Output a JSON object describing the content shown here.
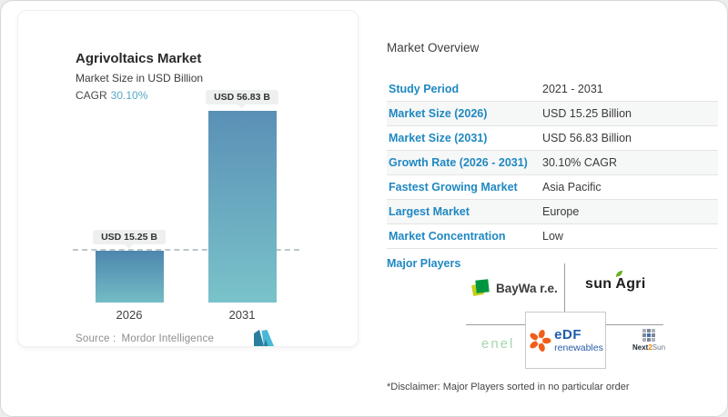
{
  "chart_card": {
    "title": "Agrivoltaics Market",
    "subtitle": "Market Size in USD Billion",
    "cagr_label": "CAGR",
    "cagr_value": "30.10%",
    "source_label": "Source :",
    "source_value": "Mordor Intelligence"
  },
  "chart_data": {
    "type": "bar",
    "title": "Agrivoltaics Market",
    "ylabel": "Market Size in USD Billion",
    "xlabel": "",
    "categories": [
      "2026",
      "2031"
    ],
    "values": [
      15.25,
      56.83
    ],
    "bar_labels": [
      "USD 15.25 B",
      "USD 56.83 B"
    ],
    "unit": "USD Billion",
    "ylim": [
      0,
      60
    ],
    "grid": false,
    "legend": false,
    "annotations": [
      "CAGR 30.10%",
      "dashed reference line at 2026 value"
    ],
    "dashed_reference_value": 15.25,
    "bar_gradients": [
      [
        "#4d86ae",
        "#74bcc5"
      ],
      [
        "#5a90b6",
        "#7ac3ca"
      ]
    ]
  },
  "overview": {
    "heading": "Market Overview",
    "rows": [
      {
        "label": "Study Period",
        "value": "2021 - 2031",
        "shaded": false
      },
      {
        "label": "Market Size (2026)",
        "value": "USD 15.25 Billion",
        "shaded": true
      },
      {
        "label": "Market Size (2031)",
        "value": "USD 56.83 Billion",
        "shaded": false
      },
      {
        "label": "Growth Rate (2026 - 2031)",
        "value": "30.10% CAGR",
        "shaded": true
      },
      {
        "label": "Fastest Growing Market",
        "value": "Asia Pacific",
        "shaded": false
      },
      {
        "label": "Largest Market",
        "value": "Europe",
        "shaded": true
      },
      {
        "label": "Market Concentration",
        "value": "Low",
        "shaded": false
      }
    ],
    "major_players_label": "Major Players",
    "disclaimer": "*Disclaimer: Major Players sorted in no particular order"
  },
  "players": {
    "baywa": {
      "label": "BayWa r.e."
    },
    "sunagri": {
      "part1": "sun",
      "part2": "Agri"
    },
    "enel": {
      "label": "enel"
    },
    "edf": {
      "brand": "eDF",
      "sub": "renewables"
    },
    "next2sun": {
      "part1": "Next",
      "part2": "2",
      "part3": "Sun"
    }
  },
  "icons": {
    "mi_logo": "mordor-intelligence-logo",
    "baywa": "baywa-green-squares-icon",
    "sunagri_leaf": "green-leaf-icon",
    "edf": "edf-orange-flower-icon",
    "next2sun": "pixel-grid-sun-icon"
  },
  "colors": {
    "accent_blue": "#1f88c1",
    "cagr_teal": "#56a8c9",
    "value_text": "#3a3a3a",
    "row_divider": "#e4e4e4",
    "row_shaded_bg": "#f6f7f7",
    "dashed_line": "#bcc7cb",
    "pill_bg": "#eef0ef"
  }
}
